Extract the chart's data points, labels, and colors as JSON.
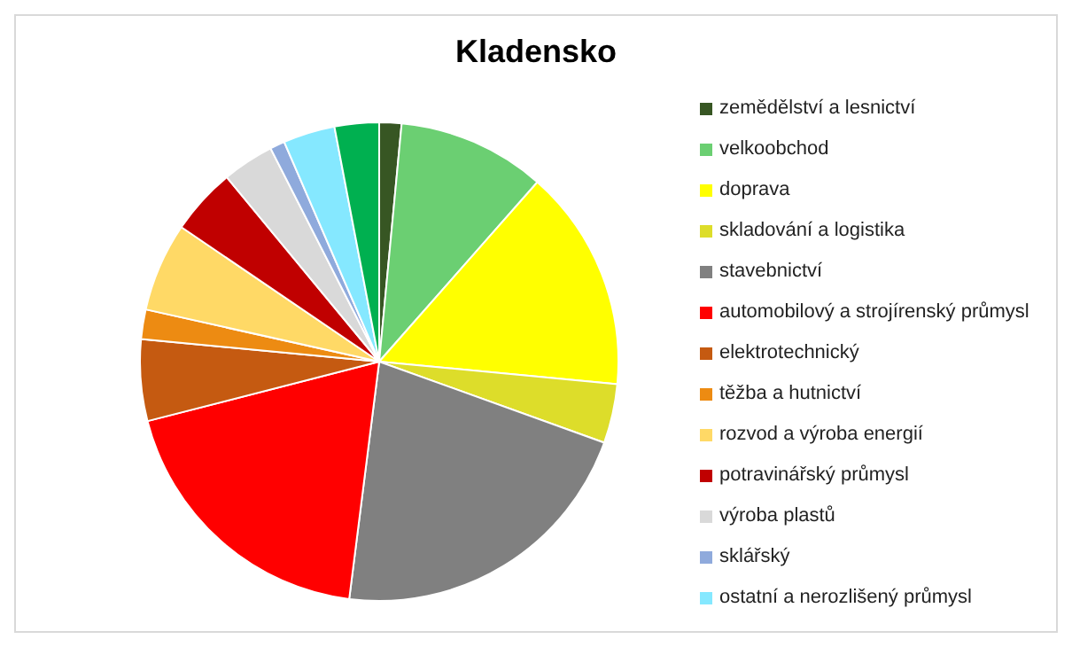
{
  "chart_data": {
    "type": "pie",
    "title": "Kladensko",
    "categories": [
      "zemědělství a lesnictví",
      "velkoobchod",
      "doprava",
      "skladování a logistika",
      "stavebnictví",
      "automobilový a strojírenský průmysl",
      "elektrotechnický",
      "těžba a hutnictví",
      "rozvod a výroba energií",
      "potravinářský průmysl",
      "výroba plastů",
      "sklářský",
      "ostatní a nerozlišený průmysl",
      null
    ],
    "values": [
      1.5,
      10,
      15,
      4,
      21.5,
      19,
      5.5,
      2,
      6,
      4.5,
      3.5,
      1,
      3.5,
      3
    ],
    "colors": [
      "#375623",
      "#6bcf72",
      "#ffff00",
      "#dddd2a",
      "#808080",
      "#ff0000",
      "#c55a11",
      "#ed8b12",
      "#ffd966",
      "#c00000",
      "#d9d9d9",
      "#8faadc",
      "#85e8ff",
      "#00b050"
    ],
    "legend": "right"
  }
}
